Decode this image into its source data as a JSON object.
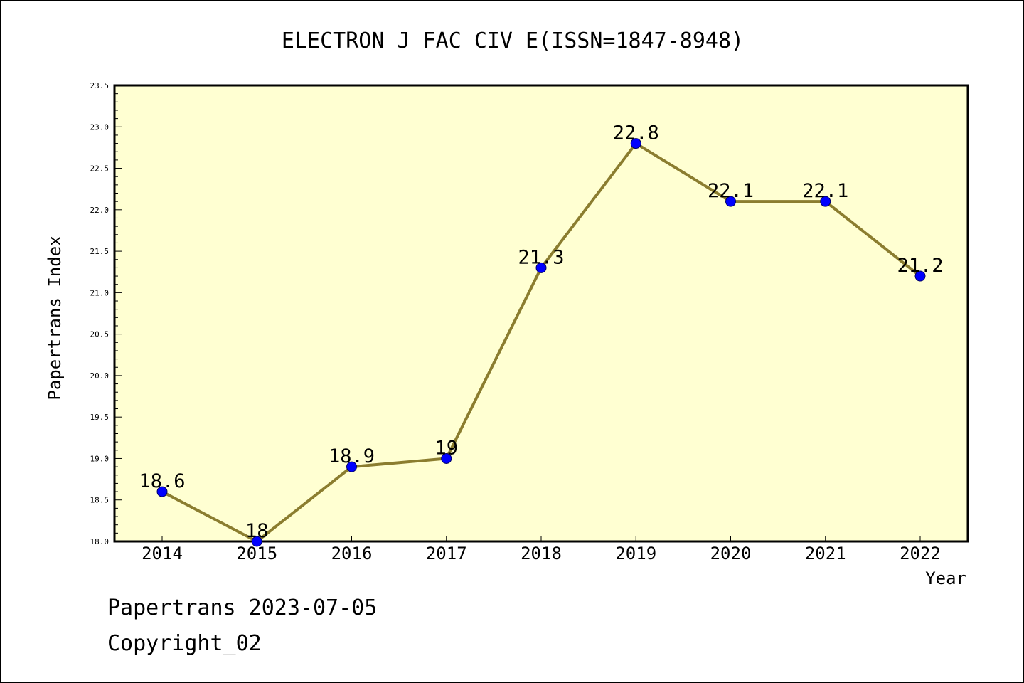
{
  "footer": {
    "line1": "Papertrans 2023-07-05",
    "line2": "Copyright_02"
  },
  "colors": {
    "plot_background": "#ffffd2",
    "line": "#8b7d2f",
    "marker": "#0000ff",
    "marker_edge": "#000066"
  },
  "chart_data": {
    "type": "line",
    "title": "ELECTRON J FAC CIV E(ISSN=1847-8948)",
    "xlabel": "Year",
    "ylabel": "Papertrans Index",
    "categories": [
      "2014",
      "2015",
      "2016",
      "2017",
      "2018",
      "2019",
      "2020",
      "2021",
      "2022"
    ],
    "series": [
      {
        "values": [
          18.6,
          18,
          18.9,
          19,
          21.3,
          22.8,
          22.1,
          22.1,
          21.2
        ],
        "labels": [
          "18.6",
          "18",
          "18.9",
          "19",
          "21.3",
          "22.8",
          "22.1",
          "22.1",
          "21.2"
        ]
      }
    ],
    "ylim": [
      18.0,
      23.5
    ],
    "yticks": [
      "18.0",
      "18.5",
      "19.0",
      "19.5",
      "20.0",
      "20.5",
      "21.0",
      "21.5",
      "22.0",
      "22.5",
      "23.0",
      "23.5"
    ],
    "grid": false,
    "legend": "none"
  }
}
